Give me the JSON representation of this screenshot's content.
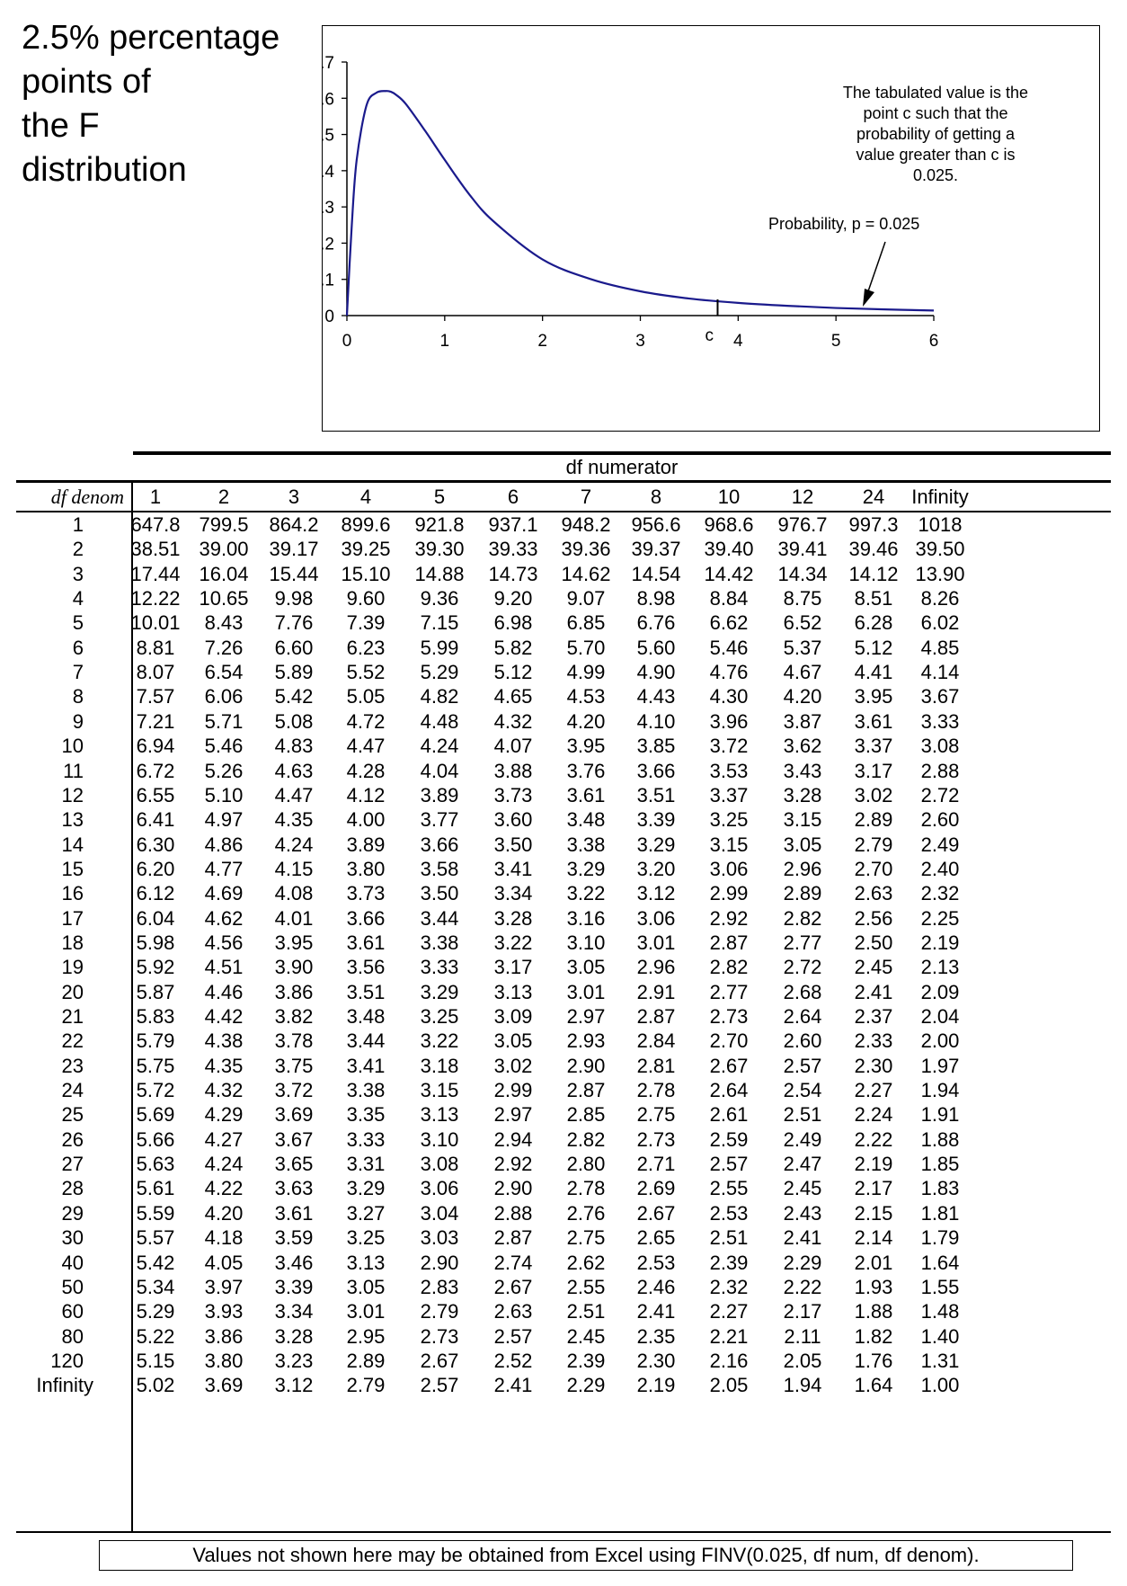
{
  "title_lines": [
    "2.5% percentage",
    "points of",
    "the F",
    "distribution"
  ],
  "chart": {
    "y_ticks": [
      "0.7",
      "0.6",
      "0.5",
      "0.4",
      "0.3",
      "0.2",
      "0.1",
      "0"
    ],
    "x_ticks": [
      "0",
      "1",
      "2",
      "3",
      "4",
      "5",
      "6"
    ],
    "c_label": "c",
    "note_lines": [
      "The tabulated value is the",
      "point c such that the",
      "probability of getting a",
      "value greater than c is",
      "0.025."
    ],
    "prob_label": "Probability, p = 0.025",
    "curve_color": "#1a1a8c"
  },
  "chart_data": {
    "type": "line",
    "x_range": [
      0,
      6
    ],
    "ylim": [
      0,
      0.7
    ],
    "critical_value_c": 3.79,
    "series": [
      {
        "x": [
          0,
          0.05,
          0.1,
          0.2,
          0.3,
          0.4,
          0.45,
          0.5,
          0.6,
          0.8,
          1.0,
          1.25,
          1.5,
          2.0,
          2.5,
          3.0,
          3.5,
          4.0,
          4.5,
          5.0,
          5.5,
          6.0
        ],
        "y": [
          0,
          0.25,
          0.43,
          0.58,
          0.615,
          0.62,
          0.618,
          0.61,
          0.585,
          0.51,
          0.43,
          0.335,
          0.26,
          0.155,
          0.1,
          0.067,
          0.047,
          0.035,
          0.027,
          0.021,
          0.017,
          0.014
        ]
      }
    ]
  },
  "table": {
    "df_numerator_label": "df numerator",
    "df_denom_label": "df denom",
    "columns": [
      "1",
      "2",
      "3",
      "4",
      "5",
      "6",
      "7",
      "8",
      "10",
      "12",
      "24",
      "Infinity"
    ],
    "rows": [
      {
        "denom": "1",
        "values": [
          "647.8",
          "799.5",
          "864.2",
          "899.6",
          "921.8",
          "937.1",
          "948.2",
          "956.6",
          "968.6",
          "976.7",
          "997.3",
          "1018"
        ]
      },
      {
        "denom": "2",
        "values": [
          "38.51",
          "39.00",
          "39.17",
          "39.25",
          "39.30",
          "39.33",
          "39.36",
          "39.37",
          "39.40",
          "39.41",
          "39.46",
          "39.50"
        ]
      },
      {
        "denom": "3",
        "values": [
          "17.44",
          "16.04",
          "15.44",
          "15.10",
          "14.88",
          "14.73",
          "14.62",
          "14.54",
          "14.42",
          "14.34",
          "14.12",
          "13.90"
        ]
      },
      {
        "denom": "4",
        "values": [
          "12.22",
          "10.65",
          "9.98",
          "9.60",
          "9.36",
          "9.20",
          "9.07",
          "8.98",
          "8.84",
          "8.75",
          "8.51",
          "8.26"
        ]
      },
      {
        "denom": "5",
        "values": [
          "10.01",
          "8.43",
          "7.76",
          "7.39",
          "7.15",
          "6.98",
          "6.85",
          "6.76",
          "6.62",
          "6.52",
          "6.28",
          "6.02"
        ]
      },
      {
        "denom": "6",
        "values": [
          "8.81",
          "7.26",
          "6.60",
          "6.23",
          "5.99",
          "5.82",
          "5.70",
          "5.60",
          "5.46",
          "5.37",
          "5.12",
          "4.85"
        ]
      },
      {
        "denom": "7",
        "values": [
          "8.07",
          "6.54",
          "5.89",
          "5.52",
          "5.29",
          "5.12",
          "4.99",
          "4.90",
          "4.76",
          "4.67",
          "4.41",
          "4.14"
        ]
      },
      {
        "denom": "8",
        "values": [
          "7.57",
          "6.06",
          "5.42",
          "5.05",
          "4.82",
          "4.65",
          "4.53",
          "4.43",
          "4.30",
          "4.20",
          "3.95",
          "3.67"
        ]
      },
      {
        "denom": "9",
        "values": [
          "7.21",
          "5.71",
          "5.08",
          "4.72",
          "4.48",
          "4.32",
          "4.20",
          "4.10",
          "3.96",
          "3.87",
          "3.61",
          "3.33"
        ]
      },
      {
        "denom": "10",
        "values": [
          "6.94",
          "5.46",
          "4.83",
          "4.47",
          "4.24",
          "4.07",
          "3.95",
          "3.85",
          "3.72",
          "3.62",
          "3.37",
          "3.08"
        ]
      },
      {
        "denom": "11",
        "values": [
          "6.72",
          "5.26",
          "4.63",
          "4.28",
          "4.04",
          "3.88",
          "3.76",
          "3.66",
          "3.53",
          "3.43",
          "3.17",
          "2.88"
        ]
      },
      {
        "denom": "12",
        "values": [
          "6.55",
          "5.10",
          "4.47",
          "4.12",
          "3.89",
          "3.73",
          "3.61",
          "3.51",
          "3.37",
          "3.28",
          "3.02",
          "2.72"
        ]
      },
      {
        "denom": "13",
        "values": [
          "6.41",
          "4.97",
          "4.35",
          "4.00",
          "3.77",
          "3.60",
          "3.48",
          "3.39",
          "3.25",
          "3.15",
          "2.89",
          "2.60"
        ]
      },
      {
        "denom": "14",
        "values": [
          "6.30",
          "4.86",
          "4.24",
          "3.89",
          "3.66",
          "3.50",
          "3.38",
          "3.29",
          "3.15",
          "3.05",
          "2.79",
          "2.49"
        ]
      },
      {
        "denom": "15",
        "values": [
          "6.20",
          "4.77",
          "4.15",
          "3.80",
          "3.58",
          "3.41",
          "3.29",
          "3.20",
          "3.06",
          "2.96",
          "2.70",
          "2.40"
        ]
      },
      {
        "denom": "16",
        "values": [
          "6.12",
          "4.69",
          "4.08",
          "3.73",
          "3.50",
          "3.34",
          "3.22",
          "3.12",
          "2.99",
          "2.89",
          "2.63",
          "2.32"
        ]
      },
      {
        "denom": "17",
        "values": [
          "6.04",
          "4.62",
          "4.01",
          "3.66",
          "3.44",
          "3.28",
          "3.16",
          "3.06",
          "2.92",
          "2.82",
          "2.56",
          "2.25"
        ]
      },
      {
        "denom": "18",
        "values": [
          "5.98",
          "4.56",
          "3.95",
          "3.61",
          "3.38",
          "3.22",
          "3.10",
          "3.01",
          "2.87",
          "2.77",
          "2.50",
          "2.19"
        ]
      },
      {
        "denom": "19",
        "values": [
          "5.92",
          "4.51",
          "3.90",
          "3.56",
          "3.33",
          "3.17",
          "3.05",
          "2.96",
          "2.82",
          "2.72",
          "2.45",
          "2.13"
        ]
      },
      {
        "denom": "20",
        "values": [
          "5.87",
          "4.46",
          "3.86",
          "3.51",
          "3.29",
          "3.13",
          "3.01",
          "2.91",
          "2.77",
          "2.68",
          "2.41",
          "2.09"
        ]
      },
      {
        "denom": "21",
        "values": [
          "5.83",
          "4.42",
          "3.82",
          "3.48",
          "3.25",
          "3.09",
          "2.97",
          "2.87",
          "2.73",
          "2.64",
          "2.37",
          "2.04"
        ]
      },
      {
        "denom": "22",
        "values": [
          "5.79",
          "4.38",
          "3.78",
          "3.44",
          "3.22",
          "3.05",
          "2.93",
          "2.84",
          "2.70",
          "2.60",
          "2.33",
          "2.00"
        ]
      },
      {
        "denom": "23",
        "values": [
          "5.75",
          "4.35",
          "3.75",
          "3.41",
          "3.18",
          "3.02",
          "2.90",
          "2.81",
          "2.67",
          "2.57",
          "2.30",
          "1.97"
        ]
      },
      {
        "denom": "24",
        "values": [
          "5.72",
          "4.32",
          "3.72",
          "3.38",
          "3.15",
          "2.99",
          "2.87",
          "2.78",
          "2.64",
          "2.54",
          "2.27",
          "1.94"
        ]
      },
      {
        "denom": "25",
        "values": [
          "5.69",
          "4.29",
          "3.69",
          "3.35",
          "3.13",
          "2.97",
          "2.85",
          "2.75",
          "2.61",
          "2.51",
          "2.24",
          "1.91"
        ]
      },
      {
        "denom": "26",
        "values": [
          "5.66",
          "4.27",
          "3.67",
          "3.33",
          "3.10",
          "2.94",
          "2.82",
          "2.73",
          "2.59",
          "2.49",
          "2.22",
          "1.88"
        ]
      },
      {
        "denom": "27",
        "values": [
          "5.63",
          "4.24",
          "3.65",
          "3.31",
          "3.08",
          "2.92",
          "2.80",
          "2.71",
          "2.57",
          "2.47",
          "2.19",
          "1.85"
        ]
      },
      {
        "denom": "28",
        "values": [
          "5.61",
          "4.22",
          "3.63",
          "3.29",
          "3.06",
          "2.90",
          "2.78",
          "2.69",
          "2.55",
          "2.45",
          "2.17",
          "1.83"
        ]
      },
      {
        "denom": "29",
        "values": [
          "5.59",
          "4.20",
          "3.61",
          "3.27",
          "3.04",
          "2.88",
          "2.76",
          "2.67",
          "2.53",
          "2.43",
          "2.15",
          "1.81"
        ]
      },
      {
        "denom": "30",
        "values": [
          "5.57",
          "4.18",
          "3.59",
          "3.25",
          "3.03",
          "2.87",
          "2.75",
          "2.65",
          "2.51",
          "2.41",
          "2.14",
          "1.79"
        ]
      },
      {
        "denom": "40",
        "values": [
          "5.42",
          "4.05",
          "3.46",
          "3.13",
          "2.90",
          "2.74",
          "2.62",
          "2.53",
          "2.39",
          "2.29",
          "2.01",
          "1.64"
        ]
      },
      {
        "denom": "50",
        "values": [
          "5.34",
          "3.97",
          "3.39",
          "3.05",
          "2.83",
          "2.67",
          "2.55",
          "2.46",
          "2.32",
          "2.22",
          "1.93",
          "1.55"
        ]
      },
      {
        "denom": "60",
        "values": [
          "5.29",
          "3.93",
          "3.34",
          "3.01",
          "2.79",
          "2.63",
          "2.51",
          "2.41",
          "2.27",
          "2.17",
          "1.88",
          "1.48"
        ]
      },
      {
        "denom": "80",
        "values": [
          "5.22",
          "3.86",
          "3.28",
          "2.95",
          "2.73",
          "2.57",
          "2.45",
          "2.35",
          "2.21",
          "2.11",
          "1.82",
          "1.40"
        ]
      },
      {
        "denom": "120",
        "values": [
          "5.15",
          "3.80",
          "3.23",
          "2.89",
          "2.67",
          "2.52",
          "2.39",
          "2.30",
          "2.16",
          "2.05",
          "1.76",
          "1.31"
        ]
      },
      {
        "denom": "Infinity",
        "values": [
          "5.02",
          "3.69",
          "3.12",
          "2.79",
          "2.57",
          "2.41",
          "2.29",
          "2.19",
          "2.05",
          "1.94",
          "1.64",
          "1.00"
        ]
      }
    ]
  },
  "footer_note": "Values not shown here may be obtained from Excel using FINV(0.025, df num, df denom)."
}
